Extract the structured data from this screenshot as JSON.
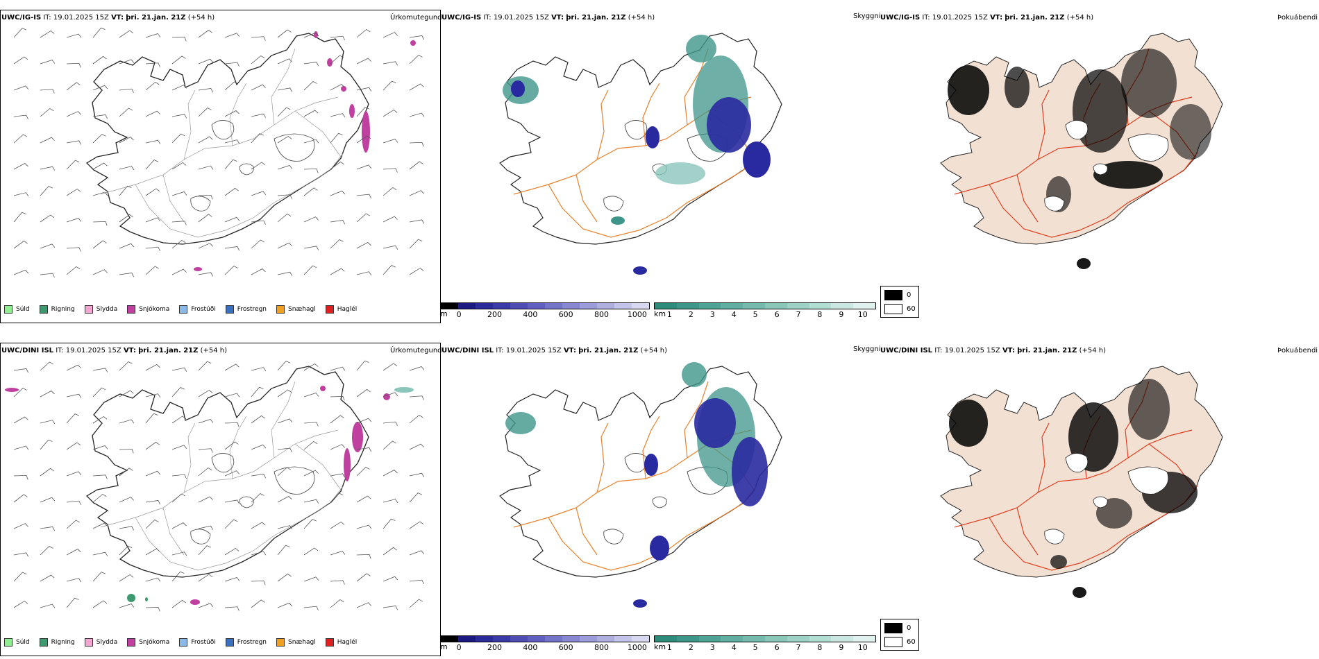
{
  "rows": [
    {
      "model": "UWC/IG-IS",
      "it_label": "IT:",
      "it_value": "19.01.2025 15Z",
      "vt_label": "VT:",
      "vt_value": "þri. 21.jan. 21Z",
      "lead": "(+54 h)"
    },
    {
      "model": "UWC/DINI ISL",
      "it_label": "IT:",
      "it_value": "19.01.2025 15Z",
      "vt_label": "VT:",
      "vt_value": "þri. 21.jan. 21Z",
      "lead": "(+54 h)"
    }
  ],
  "panel_titles": {
    "precip_type": "Úrkomutegund",
    "visibility": "Skyggni",
    "fog": "Þokuábendi"
  },
  "precip_legend": [
    {
      "label": "Súld",
      "color": "#90ee90"
    },
    {
      "label": "Rigning",
      "color": "#3c9a6e"
    },
    {
      "label": "Slydda",
      "color": "#f4a6d0"
    },
    {
      "label": "Snjókoma",
      "color": "#c040a0"
    },
    {
      "label": "Frostúði",
      "color": "#8ab8e8"
    },
    {
      "label": "Frostregn",
      "color": "#3a70c0"
    },
    {
      "label": "Snæhagl",
      "color": "#f0a020"
    },
    {
      "label": "Haglél",
      "color": "#e02020"
    }
  ],
  "vis_m_bar": {
    "unit": "m",
    "ticks": [
      "0",
      "200",
      "400",
      "600",
      "800",
      "1000"
    ],
    "colors": [
      "#000000",
      "#1a1a80",
      "#2a2a9a",
      "#3a3aa8",
      "#4d4db4",
      "#6060c0",
      "#7474c8",
      "#8888d0",
      "#9c9cd8",
      "#b0b0e0",
      "#c4c4e8",
      "#d8d8f0"
    ]
  },
  "vis_km_bar": {
    "unit": "km",
    "ticks": [
      "1",
      "2",
      "3",
      "4",
      "5",
      "6",
      "7",
      "8",
      "9",
      "10"
    ],
    "colors": [
      "#2e8a7a",
      "#3e968a",
      "#4fa296",
      "#62aea2",
      "#76baae",
      "#8ac6ba",
      "#9ed2c6",
      "#b2ded2",
      "#c8e8e0",
      "#e0f2ee"
    ]
  },
  "fog_legend": [
    {
      "label": "0",
      "color": "#000000"
    },
    {
      "label": "60",
      "color": "#ffffff"
    }
  ],
  "colors": {
    "coast": "#222222",
    "roads_orange": "#e8802a",
    "roads_red": "#e04020",
    "land_fog": "#f2e0d2",
    "snow": "#c040a0",
    "vis_dark": "#2a2aa0",
    "vis_teal": "#3e968a"
  }
}
